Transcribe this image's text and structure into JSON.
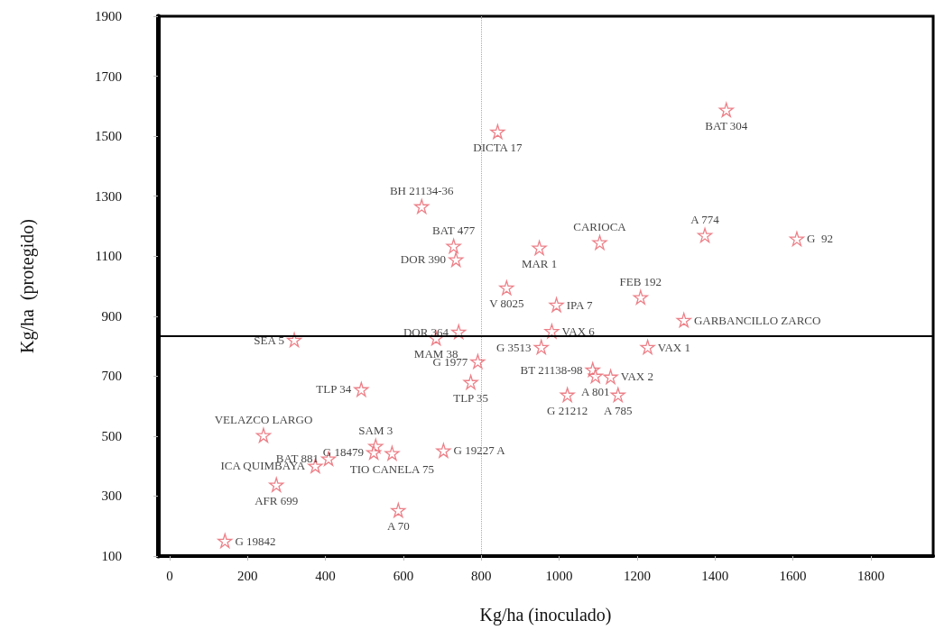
{
  "chart_data": {
    "type": "scatter",
    "xlabel": "Kg/ha (inoculado)",
    "ylabel": "Kg/ha  (protegido)",
    "xlim": [
      -30,
      1960
    ],
    "xticks": [
      0,
      200,
      400,
      600,
      800,
      1000,
      1200,
      1400,
      1600,
      1800
    ],
    "ylim": [
      100,
      1900
    ],
    "yticks": [
      100,
      300,
      500,
      700,
      900,
      1100,
      1300,
      1500,
      1700,
      1900
    ],
    "grid": false,
    "marker": "star",
    "ref_lines": [
      {
        "axis": "x",
        "value": 800,
        "label": null,
        "color": "#aaaaaa",
        "line_style": "dotted"
      },
      {
        "axis": "y",
        "value": 833,
        "label": null,
        "color": "#000000",
        "line_style": "solid"
      }
    ],
    "series": [
      {
        "color": "#e8606a",
        "x": [
          1429,
          842,
          647,
          729,
          735,
          1104,
          949,
          1374,
          1610,
          865,
          993,
          1209,
          1320,
          742,
          981,
          684,
          320,
          954,
          1227,
          791,
          1086,
          1093,
          1132,
          773,
          492,
          1021,
          1151,
          241,
          408,
          374,
          274,
          529,
          524,
          571,
          587,
          142,
          703
        ],
        "values": [
          1588,
          1515,
          1266,
          1134,
          1089,
          1146,
          1128,
          1170,
          1158,
          995,
          938,
          963,
          887,
          848,
          850,
          827,
          821,
          797,
          797,
          749,
          722,
          701,
          698,
          680,
          656,
          638,
          638,
          503,
          425,
          401,
          338,
          467,
          446,
          443,
          253,
          151,
          452
        ],
        "value_labels": [
          "BAT 304",
          "DICTA 17",
          "BH 21134-36",
          "BAT 477",
          "DOR 390",
          "CARIOCA",
          "MAR 1",
          "A 774",
          "G  92",
          "V 8025",
          "IPA 7",
          "FEB 192",
          "GARBANCILLO ZARCO",
          "DOR 364",
          "VAX 6",
          "MAM 38",
          "SEA 5",
          "G 3513",
          "VAX 1",
          "G 1977",
          "BT 21138-98",
          "A 801",
          "VAX 2",
          "TLP 35",
          "TLP 34",
          "G 21212",
          "A 785",
          "VELAZCO LARGO",
          "BAT 881",
          "ICA QUIMBAYA",
          "AFR 699",
          "SAM 3",
          "G 18479",
          "TIO CANELA 75",
          "A 70",
          "G 19842",
          "G 19227 A"
        ]
      }
    ]
  }
}
